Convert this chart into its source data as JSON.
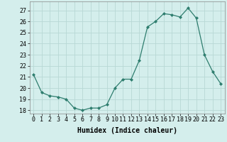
{
  "x": [
    0,
    1,
    2,
    3,
    4,
    5,
    6,
    7,
    8,
    9,
    10,
    11,
    12,
    13,
    14,
    15,
    16,
    17,
    18,
    19,
    20,
    21,
    22,
    23
  ],
  "y": [
    21.2,
    19.6,
    19.3,
    19.2,
    19.0,
    18.2,
    18.0,
    18.2,
    18.2,
    18.5,
    20.0,
    20.8,
    20.8,
    22.5,
    25.5,
    26.0,
    26.7,
    26.6,
    26.4,
    27.2,
    26.3,
    23.0,
    21.5,
    20.4
  ],
  "xlabel": "Humidex (Indice chaleur)",
  "ylim_min": 17.7,
  "ylim_max": 27.8,
  "yticks": [
    18,
    19,
    20,
    21,
    22,
    23,
    24,
    25,
    26,
    27
  ],
  "xticks": [
    0,
    1,
    2,
    3,
    4,
    5,
    6,
    7,
    8,
    9,
    10,
    11,
    12,
    13,
    14,
    15,
    16,
    17,
    18,
    19,
    20,
    21,
    22,
    23
  ],
  "line_color": "#2e7d6e",
  "marker_color": "#2e7d6e",
  "bg_color": "#d4eeec",
  "grid_color": "#b8d8d5",
  "axis_label_fontsize": 7,
  "tick_fontsize": 6
}
